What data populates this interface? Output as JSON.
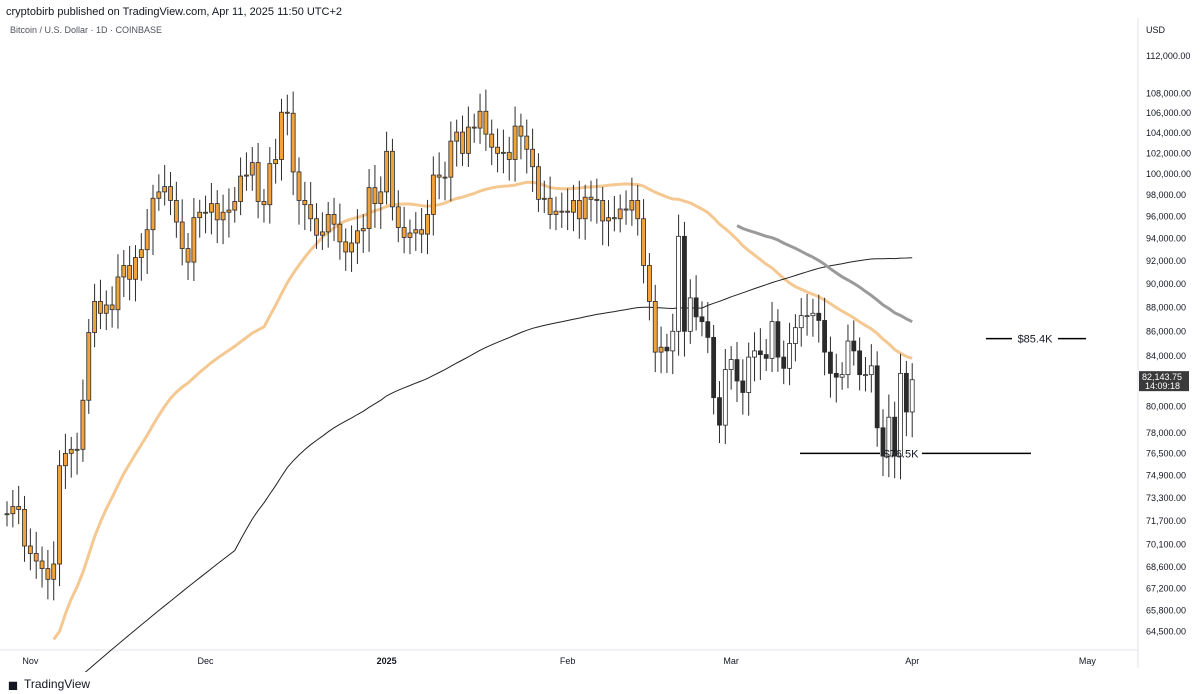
{
  "header": {
    "published": "cryptobirb published on TradingView.com, Apr 11, 2025 11:50 UTC+2",
    "symbol": "Bitcoin / U.S. Dollar · 1D · COINBASE"
  },
  "footer": {
    "brand": "TradingView",
    "logo_icon": "tradingview-logo-icon"
  },
  "colors": {
    "up_candle": "#f0a23c",
    "up_candle_light": "#f0c080",
    "down_candle": "#2b2b2b",
    "down_candle_light": "#bdbdbd",
    "ma_short": "#f5c892",
    "ma_mid": "#9a9a9a",
    "ma_long": "#222222",
    "price_tag": "#3a3a3a"
  },
  "chart_data": {
    "type": "candlestick",
    "currency_label": "USD",
    "y_ticks": [
      "112,000.00",
      "108,000.00",
      "106,000.00",
      "104,000.00",
      "102,000.00",
      "100,000.00",
      "98,000.00",
      "96,000.00",
      "94,000.00",
      "92,000.00",
      "90,000.00",
      "88,000.00",
      "86,000.00",
      "84,000.00",
      "82,000.00",
      "80,000.00",
      "78,000.00",
      "76,500.00",
      "74,900.00",
      "73,300.00",
      "71,700.00",
      "70,100.00",
      "68,600.00",
      "67,200.00",
      "65,800.00",
      "64,500.00"
    ],
    "x_ticks": [
      {
        "label": "Nov",
        "date": "2024-11-01"
      },
      {
        "label": "Dec",
        "date": "2024-12-01"
      },
      {
        "label": "2025",
        "date": "2025-01-01"
      },
      {
        "label": "Feb",
        "date": "2025-02-01"
      },
      {
        "label": "Mar",
        "date": "2025-03-01"
      },
      {
        "label": "Apr",
        "date": "2025-04-01"
      },
      {
        "label": "May",
        "date": "2025-05-01"
      }
    ],
    "x_start": "2024-10-28",
    "y_log_scale": true,
    "current_price": "82,143.75",
    "countdown": "14:09:18",
    "candles_close": [
      72200,
      72700,
      72500,
      70000,
      69500,
      69000,
      68500,
      67800,
      68800,
      75600,
      76500,
      76800,
      76800,
      80500,
      85900,
      88500,
      87500,
      88200,
      87800,
      90600,
      91600,
      90400,
      92300,
      93000,
      94800,
      97700,
      98300,
      98800,
      97500,
      95500,
      93100,
      91900,
      95900,
      96400,
      96400,
      97200,
      95700,
      96400,
      96600,
      97400,
      99800,
      99900,
      101100,
      97400,
      97100,
      101000,
      101400,
      106100,
      106000,
      100200,
      97500,
      97100,
      95800,
      94300,
      94600,
      96200,
      95300,
      93700,
      92800,
      93600,
      94700,
      94900,
      98700,
      97200,
      98300,
      102200,
      96900,
      95000,
      94100,
      94500,
      94800,
      94400,
      96200,
      99900,
      99700,
      99700,
      103200,
      104100,
      102000,
      104600,
      104500,
      106200,
      103900,
      102600,
      102000,
      102100,
      101400,
      104700,
      103700,
      102400,
      100700,
      97600,
      97700,
      96200,
      96500,
      96500,
      96400,
      97500,
      95800,
      97800,
      97600,
      97500,
      95600,
      95900,
      95800,
      96700,
      96600,
      97500,
      95800,
      91600,
      88500,
      84300,
      84700,
      84400,
      86000,
      94200,
      86000,
      88800,
      87200,
      86800,
      85500,
      80700,
      78600,
      82900,
      83700,
      82000,
      81100,
      83900,
      84400,
      84100,
      83800,
      86800,
      83900,
      83000,
      85000,
      86300,
      87300,
      87300,
      87500,
      86900,
      84300,
      82600,
      82300,
      82500,
      85200,
      84400,
      82500,
      82500,
      83200,
      78400,
      76300,
      79200,
      76300,
      82600,
      79600,
      82100
    ]
  },
  "annotations": [
    {
      "label": "$85.4K",
      "price": 85400
    },
    {
      "label": "$76.5K",
      "price": 76500
    }
  ]
}
